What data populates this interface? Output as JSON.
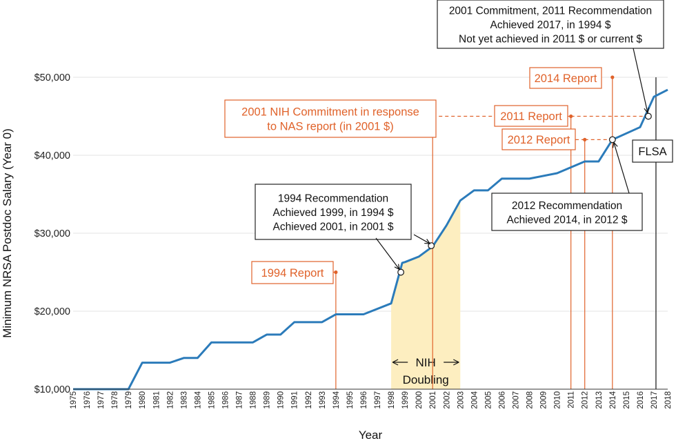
{
  "chart_data": {
    "type": "line",
    "xlabel": "Year",
    "ylabel": "Minimum NRSA Postdoc Salary (Year 0)",
    "ylim": [
      10000,
      50000
    ],
    "xlim": [
      1975,
      2018
    ],
    "yticks": [
      {
        "value": 10000,
        "label": "$10,000"
      },
      {
        "value": 20000,
        "label": "$20,000"
      },
      {
        "value": 30000,
        "label": "$30,000"
      },
      {
        "value": 40000,
        "label": "$40,000"
      },
      {
        "value": 50000,
        "label": "$50,000"
      }
    ],
    "xticks": [
      "1975",
      "1976",
      "1977",
      "1978",
      "1979",
      "1980",
      "1981",
      "1982",
      "1983",
      "1984",
      "1985",
      "1986",
      "1987",
      "1988",
      "1989",
      "1990",
      "1991",
      "1992",
      "1993",
      "1994",
      "1995",
      "1996",
      "1997",
      "1998",
      "1999",
      "2000",
      "2001",
      "2002",
      "2003",
      "2004",
      "2005",
      "2006",
      "2007",
      "2008",
      "2009",
      "2010",
      "2011",
      "2012",
      "2013",
      "2014",
      "2015",
      "2016",
      "2017",
      "2018"
    ],
    "grid": "horizontal",
    "colors": {
      "line": "#2b7bba",
      "accent": "#e0622a",
      "shade": "#fdeec0",
      "dark": "#222222"
    },
    "series": [
      {
        "x": [
          1975,
          1979,
          1980,
          1982,
          1983,
          1984,
          1985,
          1988,
          1989,
          1990,
          1991,
          1993,
          1994,
          1996,
          1998,
          1998.8,
          1999,
          2000,
          2001,
          2002,
          2003,
          2004,
          2005,
          2006,
          2008,
          2010,
          2012,
          2013,
          2014,
          2016,
          2017,
          2018
        ],
        "y": [
          10000,
          10000,
          13400,
          13400,
          14000,
          14000,
          16000,
          16000,
          17000,
          17000,
          18600,
          18600,
          19600,
          19600,
          21000,
          26200,
          26300,
          27000,
          28300,
          31000,
          34200,
          35500,
          35500,
          37000,
          37000,
          37700,
          39200,
          39200,
          42000,
          43600,
          47500,
          48400
        ]
      }
    ],
    "shaded_region": {
      "x_start": 1998,
      "x_end": 2003,
      "label": "NIH\nDoubling"
    },
    "markers": [
      {
        "x": 1998.7,
        "y": 25000
      },
      {
        "x": 2000.9,
        "y": 28400
      },
      {
        "x": 2014,
        "y": 42000
      },
      {
        "x": 2016.6,
        "y": 45000
      }
    ],
    "reports": [
      {
        "label": "1994 Report",
        "x": 1994,
        "y": 25000
      },
      {
        "label": "2001 NIH Commitment in response\nto NAS report (in 2001 $)",
        "x": 2001,
        "y": 45000
      },
      {
        "label": "2011 Report",
        "x": 2011,
        "y": 45000
      },
      {
        "label": "2012 Report",
        "x": 2012,
        "y": 42000
      },
      {
        "label": "2014 Report",
        "x": 2014,
        "y": 50000
      }
    ],
    "flsa": {
      "label": "FLSA",
      "x": 2017
    },
    "annotations": [
      {
        "text": "1994 Recommendation\nAchieved 1999, in 1994 $\nAchieved 2001, in 2001 $"
      },
      {
        "text": "2012 Recommendation\nAchieved 2014, in 2012 $"
      },
      {
        "text": "2001 Commitment, 2011 Recommendation\nAchieved 2017, in 1994 $\nNot yet achieved in 2011 $ or current $"
      }
    ]
  }
}
